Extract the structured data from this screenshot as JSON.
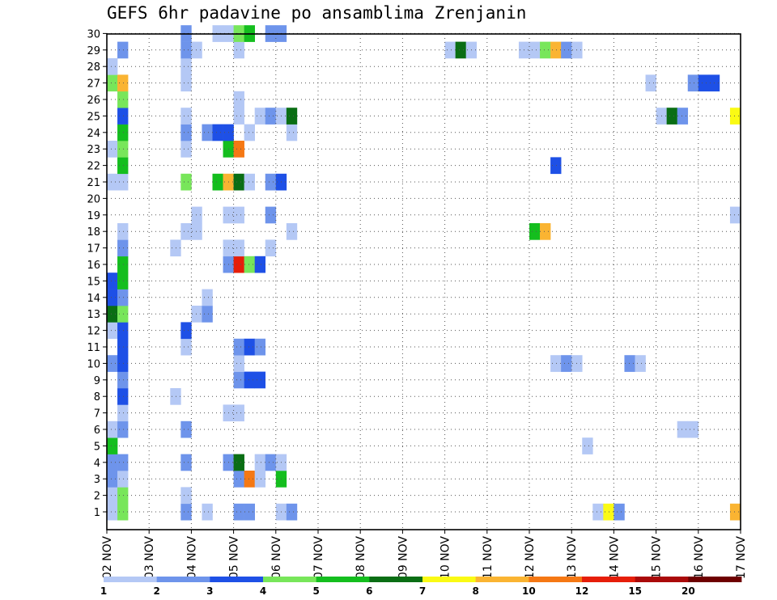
{
  "chart_data": {
    "type": "heatmap",
    "title": "GEFS 6hr padavine po ansamblima Zrenjanin",
    "xlabel": "",
    "ylabel": "",
    "x_tick_labels": [
      "02 NOV",
      "03 NOV",
      "04 NOV",
      "05 NOV",
      "06 NOV",
      "07 NOV",
      "08 NOV",
      "09 NOV",
      "10 NOV",
      "11 NOV",
      "12 NOV",
      "13 NOV",
      "14 NOV",
      "15 NOV",
      "16 NOV",
      "17 NOV"
    ],
    "y_tick_labels": [
      "1",
      "2",
      "3",
      "4",
      "5",
      "6",
      "7",
      "8",
      "9",
      "10",
      "11",
      "12",
      "13",
      "14",
      "15",
      "16",
      "17",
      "18",
      "19",
      "20",
      "21",
      "22",
      "23",
      "24",
      "25",
      "26",
      "27",
      "28",
      "29",
      "30"
    ],
    "y_range": [
      1,
      30
    ],
    "time_step_hours": 6,
    "grid": true,
    "colorbar": {
      "labels": [
        "1",
        "2",
        "3",
        "4",
        "5",
        "6",
        "7",
        "8",
        "10",
        "12",
        "15",
        "20"
      ],
      "colors": [
        "#b4c8f5",
        "#6e94eb",
        "#1e50e6",
        "#78e65a",
        "#14be1e",
        "#0a6e14",
        "#fafa14",
        "#fab432",
        "#f57814",
        "#e61e0a",
        "#aa0a0a",
        "#6e0000"
      ]
    },
    "cell_values_mm": [
      {
        "member": 1,
        "time_step": 1,
        "value": 1.5
      },
      {
        "member": 1,
        "time_step": 2,
        "value": 4.5
      },
      {
        "member": 1,
        "time_step": 8,
        "value": 2.5
      },
      {
        "member": 1,
        "time_step": 10,
        "value": 1.5
      },
      {
        "member": 1,
        "time_step": 13,
        "value": 2.5
      },
      {
        "member": 1,
        "time_step": 14,
        "value": 2.5
      },
      {
        "member": 1,
        "time_step": 17,
        "value": 1.5
      },
      {
        "member": 1,
        "time_step": 18,
        "value": 2.5
      },
      {
        "member": 1,
        "time_step": 47,
        "value": 1.5
      },
      {
        "member": 1,
        "time_step": 48,
        "value": 7.5
      },
      {
        "member": 1,
        "time_step": 49,
        "value": 2.5
      },
      {
        "member": 1,
        "time_step": 60,
        "value": 9
      },
      {
        "member": 2,
        "time_step": 1,
        "value": 1.5
      },
      {
        "member": 2,
        "time_step": 2,
        "value": 4.5
      },
      {
        "member": 2,
        "time_step": 8,
        "value": 1.5
      },
      {
        "member": 3,
        "time_step": 1,
        "value": 2.5
      },
      {
        "member": 3,
        "time_step": 2,
        "value": 1.5
      },
      {
        "member": 3,
        "time_step": 13,
        "value": 2.5
      },
      {
        "member": 3,
        "time_step": 14,
        "value": 11
      },
      {
        "member": 3,
        "time_step": 15,
        "value": 1.5
      },
      {
        "member": 3,
        "time_step": 17,
        "value": 5.5
      },
      {
        "member": 4,
        "time_step": 1,
        "value": 2.5
      },
      {
        "member": 4,
        "time_step": 2,
        "value": 2.5
      },
      {
        "member": 4,
        "time_step": 8,
        "value": 2.5
      },
      {
        "member": 4,
        "time_step": 12,
        "value": 2.5
      },
      {
        "member": 4,
        "time_step": 13,
        "value": 6.5
      },
      {
        "member": 4,
        "time_step": 15,
        "value": 1.5
      },
      {
        "member": 4,
        "time_step": 16,
        "value": 2.5
      },
      {
        "member": 4,
        "time_step": 17,
        "value": 1.5
      },
      {
        "member": 5,
        "time_step": 1,
        "value": 5.5
      },
      {
        "member": 5,
        "time_step": 46,
        "value": 1.5
      },
      {
        "member": 6,
        "time_step": 1,
        "value": 1.5
      },
      {
        "member": 6,
        "time_step": 2,
        "value": 2.5
      },
      {
        "member": 6,
        "time_step": 8,
        "value": 2.5
      },
      {
        "member": 6,
        "time_step": 55,
        "value": 1.5
      },
      {
        "member": 6,
        "time_step": 56,
        "value": 1.5
      },
      {
        "member": 7,
        "time_step": 2,
        "value": 1.5
      },
      {
        "member": 7,
        "time_step": 12,
        "value": 1.5
      },
      {
        "member": 7,
        "time_step": 13,
        "value": 1.5
      },
      {
        "member": 8,
        "time_step": 2,
        "value": 3.5
      },
      {
        "member": 8,
        "time_step": 7,
        "value": 1.5
      },
      {
        "member": 9,
        "time_step": 2,
        "value": 2.5
      },
      {
        "member": 9,
        "time_step": 13,
        "value": 2.5
      },
      {
        "member": 9,
        "time_step": 14,
        "value": 3.5
      },
      {
        "member": 9,
        "time_step": 15,
        "value": 3.5
      },
      {
        "member": 10,
        "time_step": 1,
        "value": 2.5
      },
      {
        "member": 10,
        "time_step": 2,
        "value": 3.5
      },
      {
        "member": 10,
        "time_step": 13,
        "value": 1.5
      },
      {
        "member": 10,
        "time_step": 43,
        "value": 1.5
      },
      {
        "member": 10,
        "time_step": 44,
        "value": 2.5
      },
      {
        "member": 10,
        "time_step": 45,
        "value": 1.5
      },
      {
        "member": 10,
        "time_step": 50,
        "value": 2.5
      },
      {
        "member": 10,
        "time_step": 51,
        "value": 1.5
      },
      {
        "member": 11,
        "time_step": 2,
        "value": 3.5
      },
      {
        "member": 11,
        "time_step": 8,
        "value": 1.5
      },
      {
        "member": 11,
        "time_step": 13,
        "value": 2.5
      },
      {
        "member": 11,
        "time_step": 14,
        "value": 3.5
      },
      {
        "member": 11,
        "time_step": 15,
        "value": 2.5
      },
      {
        "member": 12,
        "time_step": 1,
        "value": 1.5
      },
      {
        "member": 12,
        "time_step": 2,
        "value": 3.5
      },
      {
        "member": 12,
        "time_step": 8,
        "value": 3.5
      },
      {
        "member": 13,
        "time_step": 1,
        "value": 6.5
      },
      {
        "member": 13,
        "time_step": 2,
        "value": 4.5
      },
      {
        "member": 13,
        "time_step": 9,
        "value": 1.5
      },
      {
        "member": 13,
        "time_step": 10,
        "value": 2.5
      },
      {
        "member": 14,
        "time_step": 1,
        "value": 3.5
      },
      {
        "member": 14,
        "time_step": 2,
        "value": 2.5
      },
      {
        "member": 14,
        "time_step": 10,
        "value": 1.5
      },
      {
        "member": 15,
        "time_step": 1,
        "value": 3.5
      },
      {
        "member": 15,
        "time_step": 2,
        "value": 5.5
      },
      {
        "member": 16,
        "time_step": 2,
        "value": 5.5
      },
      {
        "member": 16,
        "time_step": 12,
        "value": 2.5
      },
      {
        "member": 16,
        "time_step": 13,
        "value": 13
      },
      {
        "member": 16,
        "time_step": 14,
        "value": 4.5
      },
      {
        "member": 16,
        "time_step": 15,
        "value": 3.5
      },
      {
        "member": 17,
        "time_step": 2,
        "value": 2.5
      },
      {
        "member": 17,
        "time_step": 7,
        "value": 1.5
      },
      {
        "member": 17,
        "time_step": 12,
        "value": 1.5
      },
      {
        "member": 17,
        "time_step": 13,
        "value": 1.5
      },
      {
        "member": 17,
        "time_step": 16,
        "value": 1.5
      },
      {
        "member": 18,
        "time_step": 2,
        "value": 1.5
      },
      {
        "member": 18,
        "time_step": 8,
        "value": 1.5
      },
      {
        "member": 18,
        "time_step": 9,
        "value": 1.5
      },
      {
        "member": 18,
        "time_step": 18,
        "value": 1.5
      },
      {
        "member": 18,
        "time_step": 41,
        "value": 5.5
      },
      {
        "member": 18,
        "time_step": 42,
        "value": 9
      },
      {
        "member": 19,
        "time_step": 9,
        "value": 1.5
      },
      {
        "member": 19,
        "time_step": 12,
        "value": 1.5
      },
      {
        "member": 19,
        "time_step": 13,
        "value": 1.5
      },
      {
        "member": 19,
        "time_step": 16,
        "value": 2.5
      },
      {
        "member": 19,
        "time_step": 60,
        "value": 1.5
      },
      {
        "member": 21,
        "time_step": 1,
        "value": 1.5
      },
      {
        "member": 21,
        "time_step": 2,
        "value": 1.5
      },
      {
        "member": 21,
        "time_step": 8,
        "value": 4.5
      },
      {
        "member": 21,
        "time_step": 11,
        "value": 5.5
      },
      {
        "member": 21,
        "time_step": 12,
        "value": 9
      },
      {
        "member": 21,
        "time_step": 13,
        "value": 6.5
      },
      {
        "member": 21,
        "time_step": 14,
        "value": 1.5
      },
      {
        "member": 21,
        "time_step": 16,
        "value": 2.5
      },
      {
        "member": 21,
        "time_step": 17,
        "value": 3.5
      },
      {
        "member": 22,
        "time_step": 2,
        "value": 5.5
      },
      {
        "member": 22,
        "time_step": 43,
        "value": 3.5
      },
      {
        "member": 23,
        "time_step": 1,
        "value": 1.5
      },
      {
        "member": 23,
        "time_step": 2,
        "value": 4.5
      },
      {
        "member": 23,
        "time_step": 8,
        "value": 1.5
      },
      {
        "member": 23,
        "time_step": 12,
        "value": 5.5
      },
      {
        "member": 23,
        "time_step": 13,
        "value": 11
      },
      {
        "member": 24,
        "time_step": 2,
        "value": 5.5
      },
      {
        "member": 24,
        "time_step": 8,
        "value": 2.5
      },
      {
        "member": 24,
        "time_step": 10,
        "value": 2.5
      },
      {
        "member": 24,
        "time_step": 11,
        "value": 3.5
      },
      {
        "member": 24,
        "time_step": 12,
        "value": 3.5
      },
      {
        "member": 24,
        "time_step": 14,
        "value": 1.5
      },
      {
        "member": 24,
        "time_step": 18,
        "value": 1.5
      },
      {
        "member": 25,
        "time_step": 2,
        "value": 3.5
      },
      {
        "member": 25,
        "time_step": 8,
        "value": 1.5
      },
      {
        "member": 25,
        "time_step": 13,
        "value": 1.5
      },
      {
        "member": 25,
        "time_step": 15,
        "value": 1.5
      },
      {
        "member": 25,
        "time_step": 16,
        "value": 2.5
      },
      {
        "member": 25,
        "time_step": 17,
        "value": 1.5
      },
      {
        "member": 25,
        "time_step": 18,
        "value": 6.5
      },
      {
        "member": 25,
        "time_step": 53,
        "value": 1.5
      },
      {
        "member": 25,
        "time_step": 54,
        "value": 6.5
      },
      {
        "member": 25,
        "time_step": 55,
        "value": 2.5
      },
      {
        "member": 25,
        "time_step": 60,
        "value": 7.5
      },
      {
        "member": 26,
        "time_step": 2,
        "value": 4.5
      },
      {
        "member": 26,
        "time_step": 13,
        "value": 1.5
      },
      {
        "member": 27,
        "time_step": 1,
        "value": 4.5
      },
      {
        "member": 27,
        "time_step": 2,
        "value": 9
      },
      {
        "member": 27,
        "time_step": 8,
        "value": 1.5
      },
      {
        "member": 27,
        "time_step": 52,
        "value": 1.5
      },
      {
        "member": 27,
        "time_step": 56,
        "value": 2.5
      },
      {
        "member": 27,
        "time_step": 57,
        "value": 3.5
      },
      {
        "member": 27,
        "time_step": 58,
        "value": 3.5
      },
      {
        "member": 28,
        "time_step": 1,
        "value": 1.5
      },
      {
        "member": 28,
        "time_step": 8,
        "value": 1.5
      },
      {
        "member": 29,
        "time_step": 2,
        "value": 2.5
      },
      {
        "member": 29,
        "time_step": 8,
        "value": 2.5
      },
      {
        "member": 29,
        "time_step": 9,
        "value": 1.5
      },
      {
        "member": 29,
        "time_step": 13,
        "value": 1.5
      },
      {
        "member": 29,
        "time_step": 33,
        "value": 1.5
      },
      {
        "member": 29,
        "time_step": 34,
        "value": 6.5
      },
      {
        "member": 29,
        "time_step": 35,
        "value": 1.5
      },
      {
        "member": 29,
        "time_step": 40,
        "value": 1.5
      },
      {
        "member": 29,
        "time_step": 41,
        "value": 1.5
      },
      {
        "member": 29,
        "time_step": 42,
        "value": 4.5
      },
      {
        "member": 29,
        "time_step": 43,
        "value": 9
      },
      {
        "member": 29,
        "time_step": 44,
        "value": 2.5
      },
      {
        "member": 29,
        "time_step": 45,
        "value": 1.5
      },
      {
        "member": 30,
        "time_step": 8,
        "value": 2.5
      },
      {
        "member": 30,
        "time_step": 11,
        "value": 1.5
      },
      {
        "member": 30,
        "time_step": 12,
        "value": 1.5
      },
      {
        "member": 30,
        "time_step": 13,
        "value": 4.5
      },
      {
        "member": 30,
        "time_step": 14,
        "value": 5.5
      },
      {
        "member": 30,
        "time_step": 16,
        "value": 2.5
      },
      {
        "member": 30,
        "time_step": 17,
        "value": 2.5
      }
    ]
  }
}
